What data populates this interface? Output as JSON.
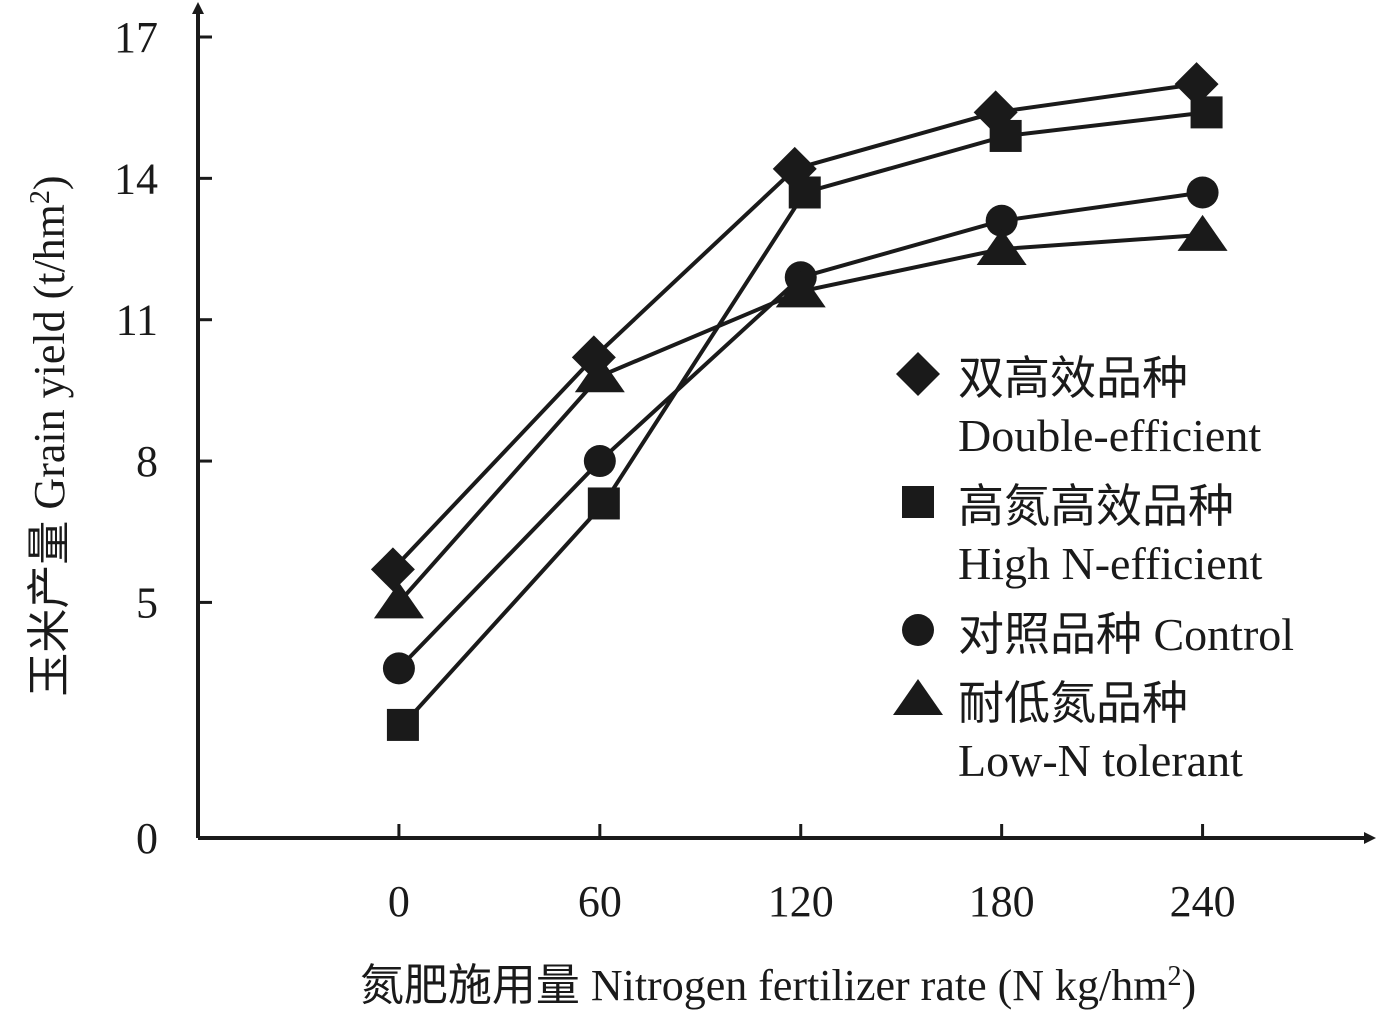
{
  "chart_data": {
    "type": "line",
    "title": "",
    "xlabel": "氮肥施用量 Nitrogen fertilizer rate (N kg/hm",
    "xlabel_sup": "2",
    "xlabel_end": ")",
    "ylabel": "玉米产量 Grain yield (t/hm",
    "ylabel_sup": "2",
    "ylabel_end": ")",
    "categories": [
      "0",
      "60",
      "120",
      "180",
      "240"
    ],
    "yticks": [
      "0",
      "5",
      "8",
      "11",
      "14",
      "17"
    ],
    "yticks_values": [
      0,
      5,
      8,
      11,
      14,
      17
    ],
    "ylim": [
      0,
      17
    ],
    "x_values": [
      0,
      60,
      120,
      180,
      240
    ],
    "xlim": [
      -60,
      290
    ],
    "grid": false,
    "legend_position": "right",
    "series": [
      {
        "name_cn": "双高效品种",
        "name_en": "Double-efficient",
        "marker": "diamond",
        "values": [
          5.7,
          10.2,
          14.2,
          15.4,
          16.0
        ]
      },
      {
        "name_cn": "高氮高效品种",
        "name_en": "High N-efficient",
        "marker": "square",
        "values": [
          2.4,
          7.1,
          13.7,
          14.9,
          15.4
        ]
      },
      {
        "name_cn": "对照品种",
        "name_en": "Control",
        "marker": "circle",
        "values": [
          3.6,
          8.0,
          11.9,
          13.1,
          13.7
        ]
      },
      {
        "name_cn": "耐低氮品种",
        "name_en": "Low-N tolerant",
        "marker": "triangle",
        "values": [
          5.0,
          9.8,
          11.6,
          12.5,
          12.8
        ]
      }
    ]
  }
}
